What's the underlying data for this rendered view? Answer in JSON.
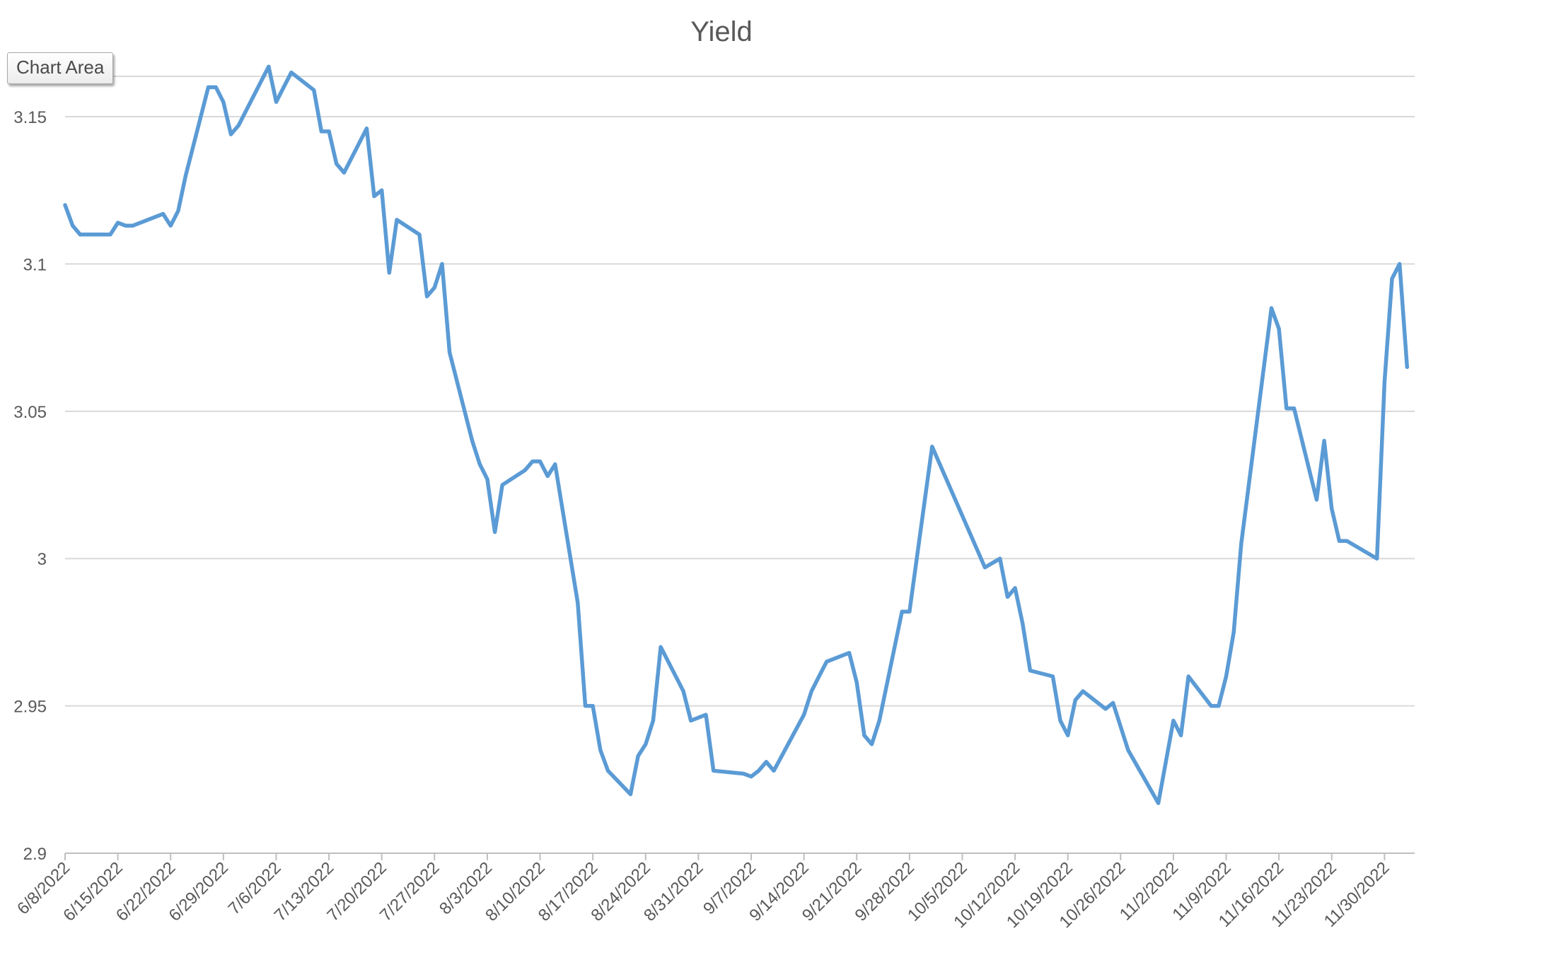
{
  "tooltip": {
    "label": "Chart Area"
  },
  "chart_data": {
    "type": "line",
    "title": "Yield",
    "xlabel": "",
    "ylabel": "",
    "ylim": [
      2.9,
      3.18
    ],
    "yticks": [
      2.9,
      2.95,
      3,
      3.05,
      3.1,
      3.15
    ],
    "ytick_labels": [
      "2.9",
      "2.95",
      "3",
      "3.05",
      "3.1",
      "3.15"
    ],
    "xlim": [
      "2022-06-08",
      "2022-12-04"
    ],
    "xtick_labels": [
      "6/8/2022",
      "6/15/2022",
      "6/22/2022",
      "6/29/2022",
      "7/6/2022",
      "7/13/2022",
      "7/20/2022",
      "7/27/2022",
      "8/3/2022",
      "8/10/2022",
      "8/17/2022",
      "8/24/2022",
      "8/31/2022",
      "9/7/2022",
      "9/14/2022",
      "9/21/2022",
      "9/28/2022",
      "10/5/2022",
      "10/12/2022",
      "10/19/2022",
      "10/26/2022",
      "11/2/2022",
      "11/9/2022",
      "11/16/2022",
      "11/23/2022",
      "11/30/2022"
    ],
    "grid": true,
    "legend": "none",
    "line_color": "#5b9bd5",
    "series": [
      {
        "name": "",
        "points": [
          {
            "x": "2022-06-08",
            "y": 3.12
          },
          {
            "x": "2022-06-09",
            "y": 3.113
          },
          {
            "x": "2022-06-10",
            "y": 3.11
          },
          {
            "x": "2022-06-13",
            "y": 3.11
          },
          {
            "x": "2022-06-14",
            "y": 3.11
          },
          {
            "x": "2022-06-15",
            "y": 3.114
          },
          {
            "x": "2022-06-16",
            "y": 3.113
          },
          {
            "x": "2022-06-17",
            "y": 3.113
          },
          {
            "x": "2022-06-21",
            "y": 3.117
          },
          {
            "x": "2022-06-22",
            "y": 3.113
          },
          {
            "x": "2022-06-23",
            "y": 3.118
          },
          {
            "x": "2022-06-24",
            "y": 3.13
          },
          {
            "x": "2022-06-27",
            "y": 3.16
          },
          {
            "x": "2022-06-28",
            "y": 3.16
          },
          {
            "x": "2022-06-29",
            "y": 3.155
          },
          {
            "x": "2022-06-30",
            "y": 3.144
          },
          {
            "x": "2022-07-01",
            "y": 3.147
          },
          {
            "x": "2022-07-05",
            "y": 3.167
          },
          {
            "x": "2022-07-06",
            "y": 3.155
          },
          {
            "x": "2022-07-07",
            "y": 3.16
          },
          {
            "x": "2022-07-08",
            "y": 3.165
          },
          {
            "x": "2022-07-11",
            "y": 3.159
          },
          {
            "x": "2022-07-12",
            "y": 3.145
          },
          {
            "x": "2022-07-13",
            "y": 3.145
          },
          {
            "x": "2022-07-14",
            "y": 3.134
          },
          {
            "x": "2022-07-15",
            "y": 3.131
          },
          {
            "x": "2022-07-18",
            "y": 3.146
          },
          {
            "x": "2022-07-19",
            "y": 3.123
          },
          {
            "x": "2022-07-20",
            "y": 3.125
          },
          {
            "x": "2022-07-21",
            "y": 3.097
          },
          {
            "x": "2022-07-22",
            "y": 3.115
          },
          {
            "x": "2022-07-25",
            "y": 3.11
          },
          {
            "x": "2022-07-26",
            "y": 3.089
          },
          {
            "x": "2022-07-27",
            "y": 3.092
          },
          {
            "x": "2022-07-28",
            "y": 3.1
          },
          {
            "x": "2022-07-29",
            "y": 3.07
          },
          {
            "x": "2022-08-01",
            "y": 3.04
          },
          {
            "x": "2022-08-02",
            "y": 3.032
          },
          {
            "x": "2022-08-03",
            "y": 3.027
          },
          {
            "x": "2022-08-04",
            "y": 3.009
          },
          {
            "x": "2022-08-05",
            "y": 3.025
          },
          {
            "x": "2022-08-08",
            "y": 3.03
          },
          {
            "x": "2022-08-09",
            "y": 3.033
          },
          {
            "x": "2022-08-10",
            "y": 3.033
          },
          {
            "x": "2022-08-11",
            "y": 3.028
          },
          {
            "x": "2022-08-12",
            "y": 3.032
          },
          {
            "x": "2022-08-15",
            "y": 2.985
          },
          {
            "x": "2022-08-16",
            "y": 2.95
          },
          {
            "x": "2022-08-17",
            "y": 2.95
          },
          {
            "x": "2022-08-18",
            "y": 2.935
          },
          {
            "x": "2022-08-19",
            "y": 2.928
          },
          {
            "x": "2022-08-22",
            "y": 2.92
          },
          {
            "x": "2022-08-23",
            "y": 2.933
          },
          {
            "x": "2022-08-24",
            "y": 2.937
          },
          {
            "x": "2022-08-25",
            "y": 2.945
          },
          {
            "x": "2022-08-26",
            "y": 2.97
          },
          {
            "x": "2022-08-29",
            "y": 2.955
          },
          {
            "x": "2022-08-30",
            "y": 2.945
          },
          {
            "x": "2022-09-01",
            "y": 2.947
          },
          {
            "x": "2022-09-02",
            "y": 2.928
          },
          {
            "x": "2022-09-06",
            "y": 2.927
          },
          {
            "x": "2022-09-07",
            "y": 2.926
          },
          {
            "x": "2022-09-08",
            "y": 2.928
          },
          {
            "x": "2022-09-09",
            "y": 2.931
          },
          {
            "x": "2022-09-10",
            "y": 2.928
          },
          {
            "x": "2022-09-14",
            "y": 2.947
          },
          {
            "x": "2022-09-15",
            "y": 2.955
          },
          {
            "x": "2022-09-16",
            "y": 2.96
          },
          {
            "x": "2022-09-17",
            "y": 2.965
          },
          {
            "x": "2022-09-20",
            "y": 2.968
          },
          {
            "x": "2022-09-21",
            "y": 2.958
          },
          {
            "x": "2022-09-22",
            "y": 2.94
          },
          {
            "x": "2022-09-23",
            "y": 2.937
          },
          {
            "x": "2022-09-24",
            "y": 2.945
          },
          {
            "x": "2022-09-27",
            "y": 2.982
          },
          {
            "x": "2022-09-28",
            "y": 2.982
          },
          {
            "x": "2022-10-01",
            "y": 3.038
          },
          {
            "x": "2022-10-08",
            "y": 2.997
          },
          {
            "x": "2022-10-10",
            "y": 3.0
          },
          {
            "x": "2022-10-11",
            "y": 2.987
          },
          {
            "x": "2022-10-12",
            "y": 2.99
          },
          {
            "x": "2022-10-13",
            "y": 2.978
          },
          {
            "x": "2022-10-14",
            "y": 2.962
          },
          {
            "x": "2022-10-17",
            "y": 2.96
          },
          {
            "x": "2022-10-18",
            "y": 2.945
          },
          {
            "x": "2022-10-19",
            "y": 2.94
          },
          {
            "x": "2022-10-20",
            "y": 2.952
          },
          {
            "x": "2022-10-21",
            "y": 2.955
          },
          {
            "x": "2022-10-24",
            "y": 2.949
          },
          {
            "x": "2022-10-25",
            "y": 2.951
          },
          {
            "x": "2022-10-27",
            "y": 2.935
          },
          {
            "x": "2022-10-31",
            "y": 2.917
          },
          {
            "x": "2022-11-02",
            "y": 2.945
          },
          {
            "x": "2022-11-03",
            "y": 2.94
          },
          {
            "x": "2022-11-04",
            "y": 2.96
          },
          {
            "x": "2022-11-07",
            "y": 2.95
          },
          {
            "x": "2022-11-08",
            "y": 2.95
          },
          {
            "x": "2022-11-09",
            "y": 2.96
          },
          {
            "x": "2022-11-10",
            "y": 2.975
          },
          {
            "x": "2022-11-11",
            "y": 3.005
          },
          {
            "x": "2022-11-15",
            "y": 3.085
          },
          {
            "x": "2022-11-16",
            "y": 3.078
          },
          {
            "x": "2022-11-17",
            "y": 3.051
          },
          {
            "x": "2022-11-18",
            "y": 3.051
          },
          {
            "x": "2022-11-21",
            "y": 3.02
          },
          {
            "x": "2022-11-22",
            "y": 3.04
          },
          {
            "x": "2022-11-23",
            "y": 3.017
          },
          {
            "x": "2022-11-24",
            "y": 3.006
          },
          {
            "x": "2022-11-25",
            "y": 3.006
          },
          {
            "x": "2022-11-29",
            "y": 3.0
          },
          {
            "x": "2022-11-30",
            "y": 3.06
          },
          {
            "x": "2022-12-01",
            "y": 3.095
          },
          {
            "x": "2022-12-02",
            "y": 3.1
          },
          {
            "x": "2022-12-03",
            "y": 3.065
          }
        ]
      }
    ]
  }
}
